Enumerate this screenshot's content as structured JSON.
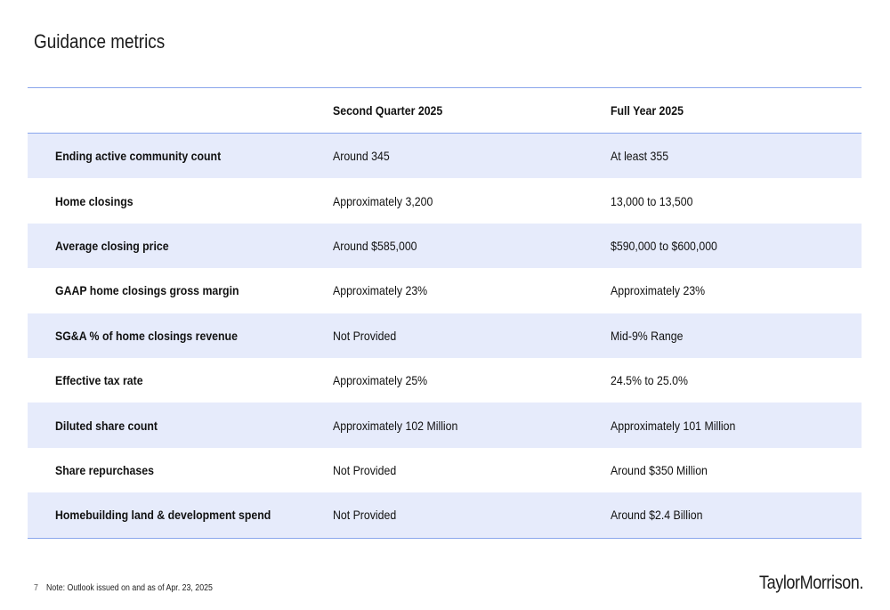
{
  "title": "Guidance metrics",
  "table": {
    "headers": [
      "",
      "Second Quarter 2025",
      "Full Year 2025"
    ],
    "rows": [
      {
        "metric": "Ending active community count",
        "q2": "Around 345",
        "fy": "At least 355"
      },
      {
        "metric": "Home closings",
        "q2": "Approximately 3,200",
        "fy": "13,000 to 13,500"
      },
      {
        "metric": "Average closing price",
        "q2": "Around $585,000",
        "fy": "$590,000 to $600,000"
      },
      {
        "metric": "GAAP home closings gross margin",
        "q2": "Approximately 23%",
        "fy": "Approximately 23%"
      },
      {
        "metric": "SG&A % of home closings revenue",
        "q2": "Not Provided",
        "fy": "Mid-9% Range"
      },
      {
        "metric": "Effective tax rate",
        "q2": "Approximately 25%",
        "fy": "24.5% to 25.0%"
      },
      {
        "metric": "Diluted share count",
        "q2": "Approximately 102 Million",
        "fy": "Approximately 101 Million"
      },
      {
        "metric": "Share repurchases",
        "q2": "Not Provided",
        "fy": "Around $350 Million"
      },
      {
        "metric": "Homebuilding land & development spend",
        "q2": "Not Provided",
        "fy": "Around $2.4 Billion"
      }
    ]
  },
  "footer": {
    "page_number": "7",
    "note": "Note: Outlook issued on and as of Apr. 23, 2025"
  },
  "logo": {
    "text": "TaylorMorrison",
    "mark": "."
  },
  "colors": {
    "rule": "#8aa6ec",
    "shade": "#e6ebfb"
  }
}
